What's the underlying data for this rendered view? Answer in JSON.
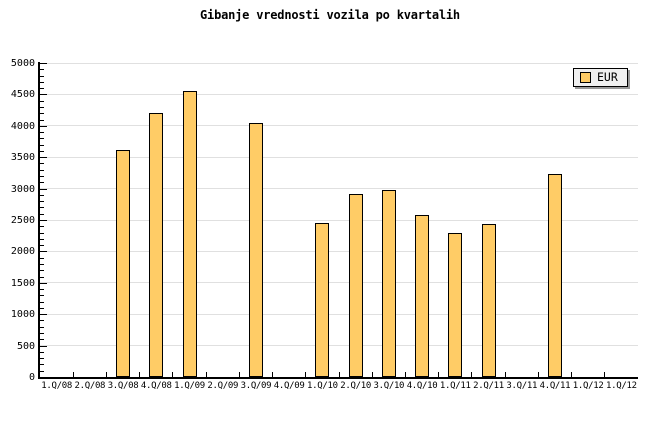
{
  "chart_data": {
    "type": "bar",
    "title": "Gibanje vrednosti vozila po kvartalih",
    "categories": [
      "1.Q/08",
      "2.Q/08",
      "3.Q/08",
      "4.Q/08",
      "1.Q/09",
      "2.Q/09",
      "3.Q/09",
      "4.Q/09",
      "1.Q/10",
      "2.Q/10",
      "3.Q/10",
      "4.Q/10",
      "1.Q/11",
      "2.Q/11",
      "3.Q/11",
      "4.Q/11",
      "1.Q/12",
      "1.Q/12"
    ],
    "values": [
      0,
      0,
      3620,
      4210,
      4550,
      0,
      4040,
      0,
      2450,
      2910,
      2980,
      2580,
      2300,
      2430,
      0,
      3230,
      0,
      0
    ],
    "series_name": "EUR",
    "ylim": [
      0,
      5000
    ],
    "ytick_step": 500,
    "yminor_tick_step": 100,
    "ytick_labels": [
      "0",
      "500",
      "1000",
      "1500",
      "2000",
      "2500",
      "3000",
      "3500",
      "4000",
      "4500",
      "5000"
    ],
    "grid": true,
    "legend": {
      "entries": [
        "EUR"
      ],
      "position": "top-right"
    },
    "colors": {
      "bar_fill": "#FFCC66",
      "bar_border": "#000000",
      "gridline": "#E0E0E0",
      "axis": "#000000",
      "background": "#FFFFFF",
      "legend_bg": "#F0F0F0",
      "legend_shadow": "#999999"
    }
  }
}
